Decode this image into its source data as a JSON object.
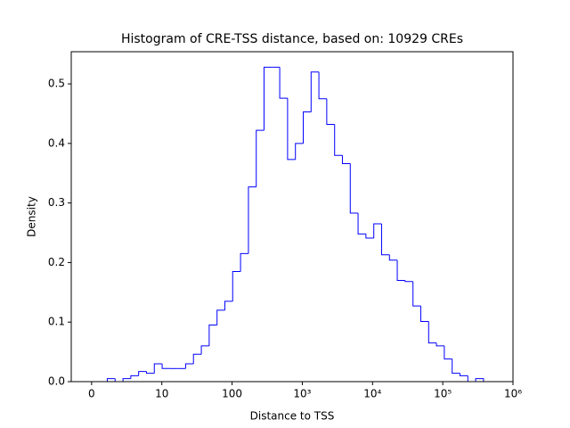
{
  "chart_data": {
    "type": "histogram_step",
    "title": "Histogram of CRE-TSS distance, based on: 10929 CREs",
    "xlabel": "Distance to TSS",
    "ylabel": "Density",
    "xscale": "symlog",
    "linthresh": 10,
    "color": "#0000ff",
    "bins": [
      0,
      1.116,
      2.232,
      3.348,
      4.464,
      5.58,
      6.696,
      7.812,
      8.928,
      10.1,
      13.1,
      16.9,
      21.8,
      28.2,
      36.5,
      47.2,
      61.1,
      78.9,
      102,
      132,
      171,
      221,
      285,
      369,
      477,
      617,
      798,
      1031,
      1334,
      1723,
      2228,
      2884,
      3724,
      4819,
      6223,
      8054,
      10420,
      13460,
      17420,
      22490,
      29110,
      37670,
      48640,
      62950,
      81280,
      105200,
      136100,
      175800,
      227500,
      293800,
      380200
    ],
    "values": [
      0,
      0,
      0.005,
      0,
      0.005,
      0.01,
      0.017,
      0.014,
      0.03,
      0.022,
      0.022,
      0.022,
      0.03,
      0.046,
      0.06,
      0.095,
      0.12,
      0.135,
      0.185,
      0.215,
      0.327,
      0.422,
      0.528,
      0.528,
      0.476,
      0.373,
      0.4,
      0.453,
      0.52,
      0.475,
      0.432,
      0.38,
      0.366,
      0.283,
      0.248,
      0.241,
      0.265,
      0.213,
      0.204,
      0.17,
      0.168,
      0.127,
      0.101,
      0.065,
      0.06,
      0.038,
      0.014,
      0.01,
      0,
      0.005
    ],
    "xlim": [
      -2.9,
      1000000
    ],
    "xticks": [
      0,
      10,
      100,
      {
        "value": 1000,
        "label": "10³"
      },
      {
        "value": 10000,
        "label": "10⁴"
      },
      {
        "value": 100000,
        "label": "10⁵"
      },
      {
        "value": 1000000,
        "label": "10⁶"
      }
    ],
    "ylim": [
      0,
      0.554
    ],
    "yticks": [
      {
        "value": 0,
        "label": "0.0"
      },
      0.1,
      0.2,
      0.3,
      0.4,
      0.5
    ]
  }
}
